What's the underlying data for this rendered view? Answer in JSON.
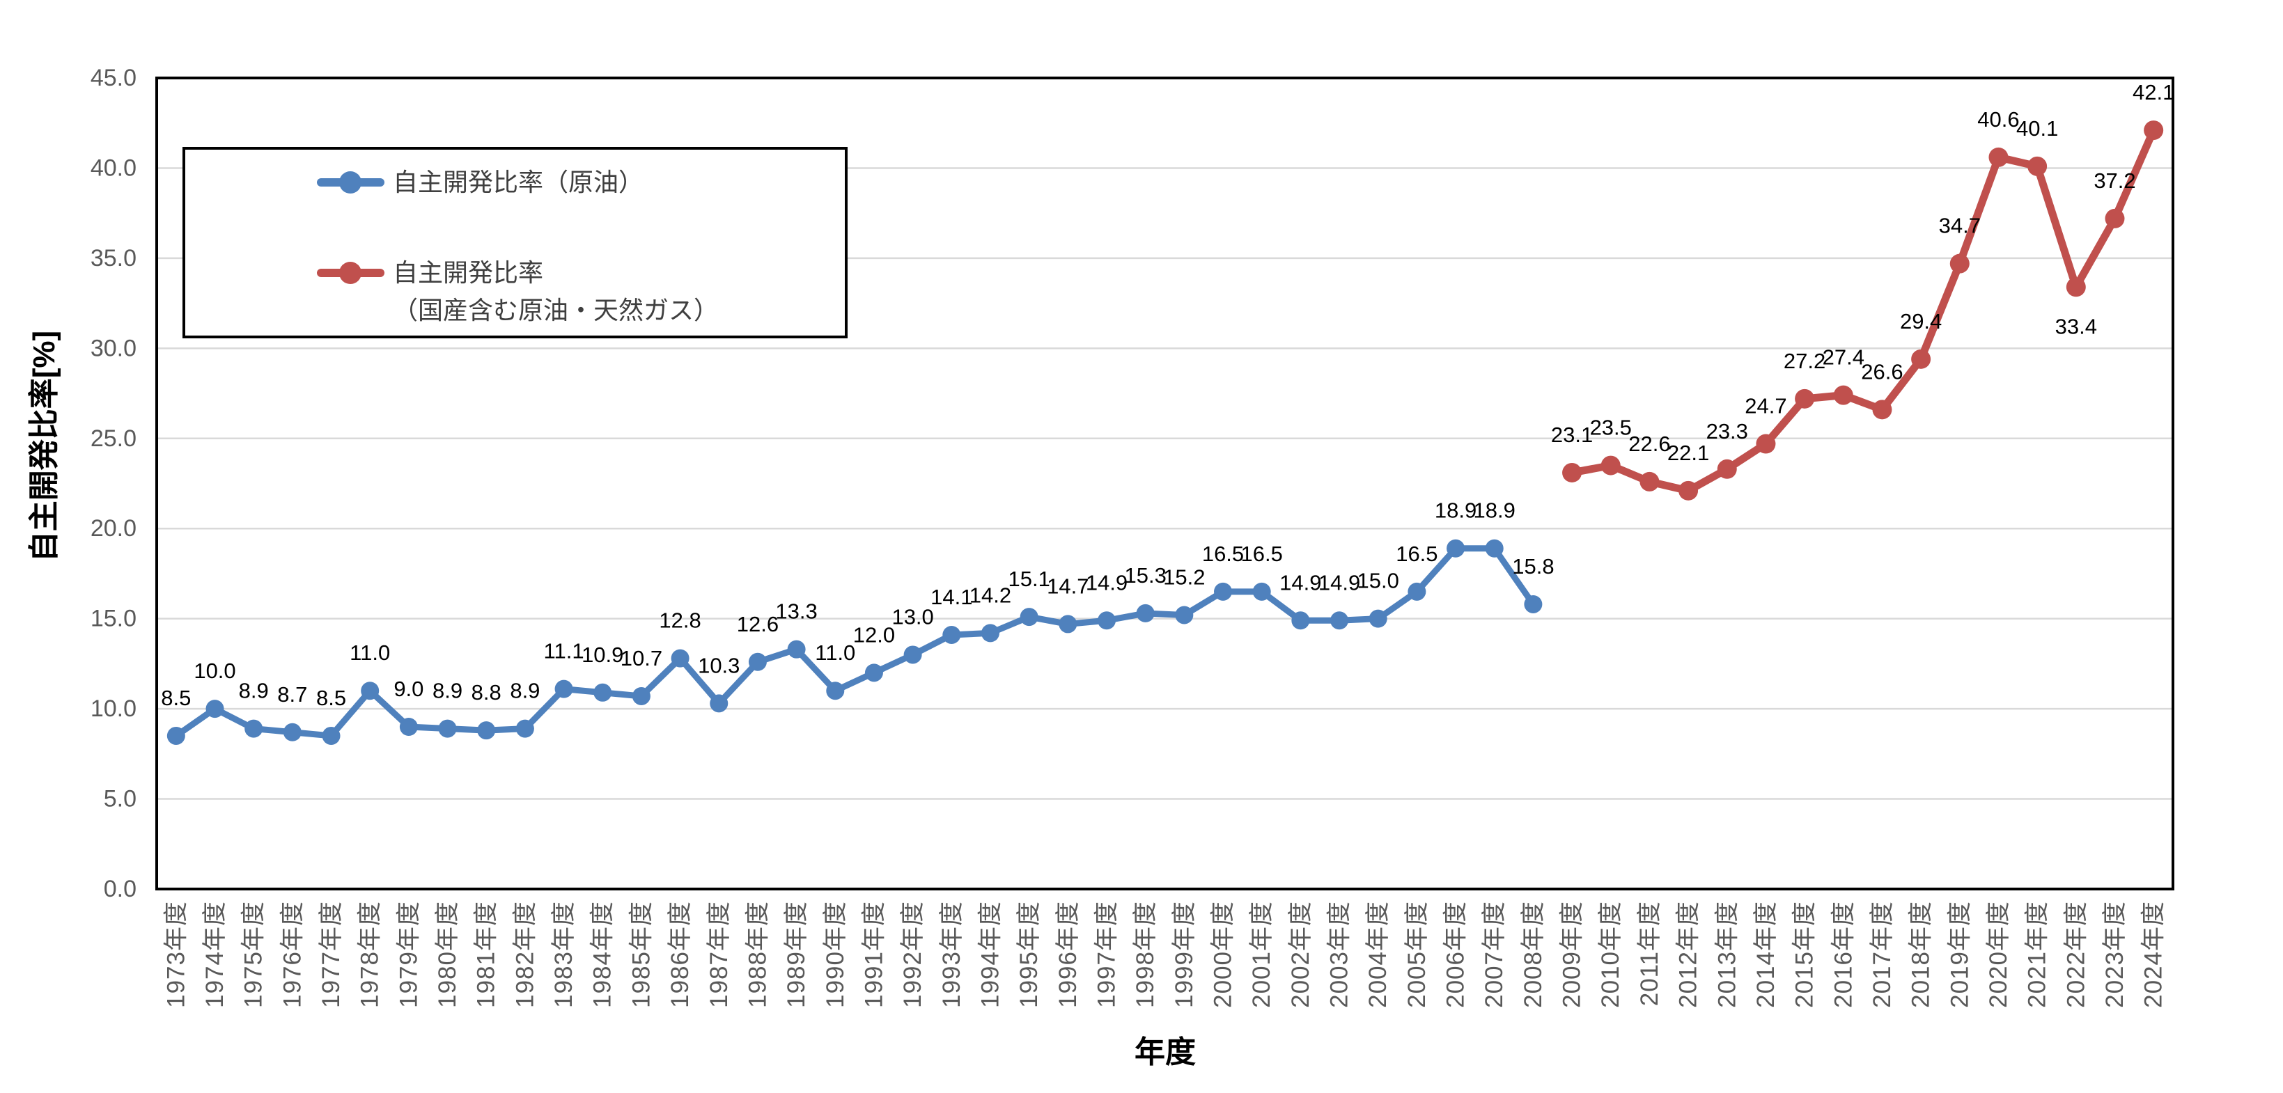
{
  "accent_colors": {
    "series_blue": "#4F81BD",
    "series_red": "#C0504D"
  },
  "legend": {
    "entries": [
      {
        "label": "自主開発比率（原油）",
        "color": "#4F81BD"
      },
      {
        "label_line1": "自主開発比率",
        "label_line2": "（国産含む原油・天然ガス）",
        "color": "#C0504D"
      }
    ]
  },
  "chart_data": {
    "type": "line",
    "title": "",
    "ylabel": "自主開発比率[%]",
    "xlabel": "年度",
    "ylim": [
      0,
      45
    ],
    "ytick_step": 5,
    "ytick_decimals": 1,
    "grid": true,
    "legend_position": "inside-top-left",
    "categories": [
      "1973年度",
      "1974年度",
      "1975年度",
      "1976年度",
      "1977年度",
      "1978年度",
      "1979年度",
      "1980年度",
      "1981年度",
      "1982年度",
      "1983年度",
      "1984年度",
      "1985年度",
      "1986年度",
      "1987年度",
      "1988年度",
      "1989年度",
      "1990年度",
      "1991年度",
      "1992年度",
      "1993年度",
      "1994年度",
      "1995年度",
      "1996年度",
      "1997年度",
      "1998年度",
      "1999年度",
      "2000年度",
      "2001年度",
      "2002年度",
      "2003年度",
      "2004年度",
      "2005年度",
      "2006年度",
      "2007年度",
      "2008年度",
      "2009年度",
      "2010年度",
      "2011年度",
      "2012年度",
      "2013年度",
      "2014年度",
      "2015年度",
      "2016年度",
      "2017年度",
      "2018年度",
      "2019年度",
      "2020年度",
      "2021年度",
      "2022年度",
      "2023年度",
      "2024年度"
    ],
    "series": [
      {
        "name": "自主開発比率（原油）",
        "color": "#4F81BD",
        "start_index": 0,
        "values": [
          8.5,
          10.0,
          8.9,
          8.7,
          8.5,
          11.0,
          9.0,
          8.9,
          8.8,
          8.9,
          11.1,
          10.9,
          10.7,
          12.8,
          10.3,
          12.6,
          13.3,
          11.0,
          12.0,
          13.0,
          14.1,
          14.2,
          15.1,
          14.7,
          14.9,
          15.3,
          15.2,
          16.5,
          16.5,
          14.9,
          14.9,
          15.0,
          16.5,
          18.9,
          18.9,
          15.8
        ]
      },
      {
        "name": "自主開発比率（国産含む原油・天然ガス）",
        "color": "#C0504D",
        "start_index": 36,
        "values": [
          23.1,
          23.5,
          22.6,
          22.1,
          23.3,
          24.7,
          27.2,
          27.4,
          26.6,
          29.4,
          34.7,
          40.6,
          40.1,
          33.4,
          37.2,
          42.1
        ]
      }
    ],
    "data_label_decimals": 1,
    "label_offsets": {
      "2022年度": {
        "dx": 0,
        "dy": 111
      }
    }
  }
}
